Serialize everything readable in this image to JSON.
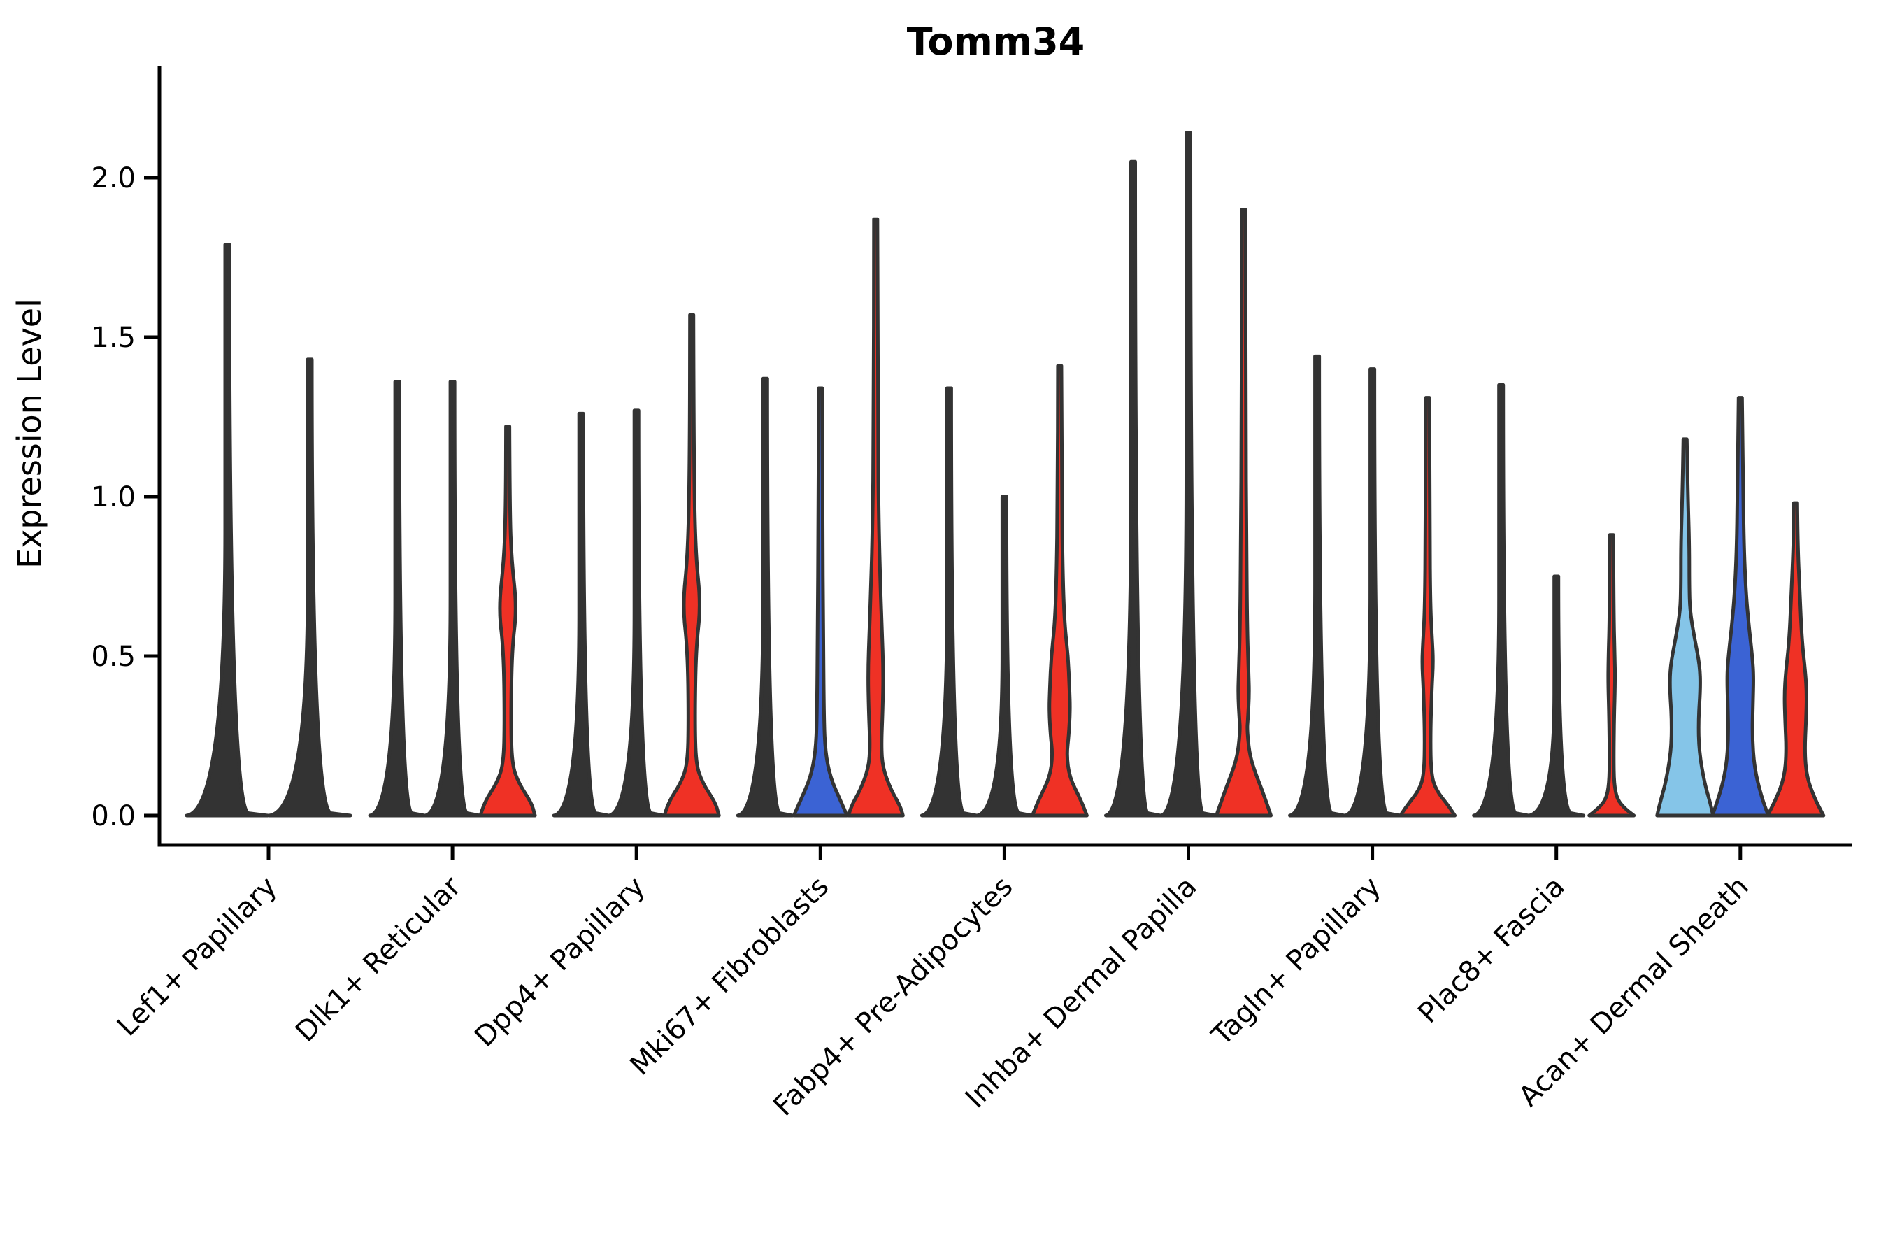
{
  "title": "Tomm34",
  "ylabel": "Expression Level",
  "colors": {
    "red": "#ef3125",
    "blue": "#3b63d4",
    "lightblue": "#85c5e8",
    "outline": "#333333",
    "axis": "#000000"
  },
  "chart_data": {
    "type": "violin",
    "title": "Tomm34",
    "xlabel": "",
    "ylabel": "Expression Level",
    "ylim": [
      0,
      2.2
    ],
    "yticks": [
      0.0,
      0.5,
      1.0,
      1.5,
      2.0
    ],
    "ytick_labels": [
      "0.0",
      "0.5",
      "1.0",
      "1.5",
      "2.0"
    ],
    "grid": false,
    "legend": false,
    "categories": [
      {
        "label": "Lef1+ Papillary",
        "violins": [
          {
            "split": "split-1",
            "color_key": "outline",
            "max_expression": 1.79,
            "profile": [
              [
                1.79,
                3
              ],
              [
                0.015,
                3
              ],
              [
                0,
                58
              ]
            ]
          },
          {
            "split": "split-3",
            "color_key": "outline",
            "max_expression": 1.43,
            "profile": [
              [
                1.43,
                3
              ],
              [
                0.015,
                3
              ],
              [
                0,
                58
              ]
            ]
          }
        ]
      },
      {
        "label": "Dlk1+ Reticular",
        "violins": [
          {
            "split": "split-1",
            "color_key": "outline",
            "max_expression": 1.36,
            "profile": [
              [
                1.36,
                3
              ],
              [
                0.015,
                3
              ],
              [
                0,
                39
              ]
            ]
          },
          {
            "split": "split-2",
            "color_key": "outline",
            "max_expression": 1.36,
            "profile": [
              [
                1.36,
                3
              ],
              [
                0.015,
                3
              ],
              [
                0,
                39
              ]
            ]
          },
          {
            "split": "split-3",
            "color_key": "red",
            "max_expression": 1.22,
            "profile": [
              [
                1.22,
                2.5
              ],
              [
                0.95,
                3
              ],
              [
                0.8,
                5.5
              ],
              [
                0.65,
                13
              ],
              [
                0.52,
                6
              ],
              [
                0.3,
                4.5
              ],
              [
                0.16,
                6
              ],
              [
                0.1,
                16
              ],
              [
                0.04,
                34
              ],
              [
                0,
                39
              ]
            ]
          }
        ]
      },
      {
        "label": "Dpp4+ Papillary",
        "violins": [
          {
            "split": "split-1",
            "color_key": "outline",
            "max_expression": 1.26,
            "profile": [
              [
                1.26,
                3
              ],
              [
                0.015,
                3
              ],
              [
                0,
                39
              ]
            ]
          },
          {
            "split": "split-2",
            "color_key": "outline",
            "max_expression": 1.27,
            "profile": [
              [
                1.27,
                3
              ],
              [
                0.015,
                3
              ],
              [
                0,
                39
              ]
            ]
          },
          {
            "split": "split-3",
            "color_key": "red",
            "max_expression": 1.57,
            "profile": [
              [
                1.57,
                2.5
              ],
              [
                1.1,
                3
              ],
              [
                0.82,
                5.5
              ],
              [
                0.66,
                13
              ],
              [
                0.52,
                6
              ],
              [
                0.3,
                4.5
              ],
              [
                0.16,
                6
              ],
              [
                0.1,
                16
              ],
              [
                0.04,
                34
              ],
              [
                0,
                39
              ]
            ]
          }
        ]
      },
      {
        "label": "Mki67+ Fibroblasts",
        "violins": [
          {
            "split": "split-1",
            "color_key": "outline",
            "max_expression": 1.37,
            "profile": [
              [
                1.37,
                3
              ],
              [
                0.015,
                3
              ],
              [
                0,
                39
              ]
            ]
          },
          {
            "split": "split-2",
            "color_key": "blue",
            "max_expression": 1.34,
            "profile": [
              [
                1.34,
                2.5
              ],
              [
                0.9,
                3
              ],
              [
                0.6,
                4
              ],
              [
                0.3,
                5
              ],
              [
                0.2,
                7
              ],
              [
                0.12,
                14
              ],
              [
                0.05,
                28
              ],
              [
                0,
                38
              ]
            ]
          },
          {
            "split": "split-3",
            "color_key": "red",
            "max_expression": 1.87,
            "profile": [
              [
                1.87,
                2.5
              ],
              [
                1.2,
                3
              ],
              [
                0.9,
                4.5
              ],
              [
                0.7,
                7
              ],
              [
                0.58,
                9
              ],
              [
                0.45,
                11
              ],
              [
                0.33,
                10
              ],
              [
                0.22,
                8
              ],
              [
                0.15,
                10
              ],
              [
                0.08,
                22
              ],
              [
                0.03,
                35
              ],
              [
                0,
                39
              ]
            ]
          }
        ]
      },
      {
        "label": "Fabp4+ Pre-Adipocytes",
        "violins": [
          {
            "split": "split-1",
            "color_key": "outline",
            "max_expression": 1.34,
            "profile": [
              [
                1.34,
                3
              ],
              [
                0.015,
                3
              ],
              [
                0,
                39
              ]
            ]
          },
          {
            "split": "split-2",
            "color_key": "outline",
            "max_expression": 1.0,
            "profile": [
              [
                1.0,
                3
              ],
              [
                0.015,
                3
              ],
              [
                0,
                39
              ]
            ]
          },
          {
            "split": "split-3",
            "color_key": "red",
            "max_expression": 1.41,
            "profile": [
              [
                1.41,
                2.5
              ],
              [
                1.0,
                3
              ],
              [
                0.75,
                4.5
              ],
              [
                0.6,
                7
              ],
              [
                0.5,
                12
              ],
              [
                0.4,
                14
              ],
              [
                0.33,
                15
              ],
              [
                0.25,
                13
              ],
              [
                0.19,
                10
              ],
              [
                0.12,
                14
              ],
              [
                0.05,
                30
              ],
              [
                0,
                39
              ]
            ]
          }
        ]
      },
      {
        "label": "Inhba+ Dermal Papilla",
        "violins": [
          {
            "split": "split-1",
            "color_key": "outline",
            "max_expression": 2.05,
            "profile": [
              [
                2.05,
                3
              ],
              [
                0.015,
                3
              ],
              [
                0,
                39
              ]
            ]
          },
          {
            "split": "split-2",
            "color_key": "outline",
            "max_expression": 2.14,
            "profile": [
              [
                2.14,
                3
              ],
              [
                0.015,
                3
              ],
              [
                0,
                39
              ]
            ]
          },
          {
            "split": "split-3",
            "color_key": "red",
            "max_expression": 1.9,
            "profile": [
              [
                1.9,
                2.5
              ],
              [
                1.2,
                3
              ],
              [
                0.9,
                4
              ],
              [
                0.6,
                5
              ],
              [
                0.45,
                7
              ],
              [
                0.38,
                8
              ],
              [
                0.3,
                6
              ],
              [
                0.27,
                5
              ],
              [
                0.2,
                8
              ],
              [
                0.15,
                14
              ],
              [
                0.07,
                28
              ],
              [
                0,
                39
              ]
            ]
          }
        ]
      },
      {
        "label": "Tagln+ Papillary",
        "violins": [
          {
            "split": "split-1",
            "color_key": "outline",
            "max_expression": 1.44,
            "profile": [
              [
                1.44,
                3
              ],
              [
                0.015,
                3
              ],
              [
                0,
                39
              ]
            ]
          },
          {
            "split": "split-2",
            "color_key": "outline",
            "max_expression": 1.4,
            "profile": [
              [
                1.4,
                3
              ],
              [
                0.015,
                3
              ],
              [
                0,
                39
              ]
            ]
          },
          {
            "split": "split-3",
            "color_key": "red",
            "max_expression": 1.31,
            "profile": [
              [
                1.31,
                2.5
              ],
              [
                0.9,
                3
              ],
              [
                0.65,
                4
              ],
              [
                0.55,
                6.5
              ],
              [
                0.48,
                8
              ],
              [
                0.4,
                6
              ],
              [
                0.25,
                4
              ],
              [
                0.13,
                5
              ],
              [
                0.08,
                12
              ],
              [
                0.03,
                30
              ],
              [
                0,
                39
              ]
            ]
          }
        ]
      },
      {
        "label": "Plac8+ Fascia",
        "violins": [
          {
            "split": "split-1",
            "color_key": "outline",
            "max_expression": 1.35,
            "profile": [
              [
                1.35,
                3
              ],
              [
                0.015,
                3
              ],
              [
                0,
                39
              ]
            ]
          },
          {
            "split": "split-2",
            "color_key": "outline",
            "max_expression": 0.75,
            "profile": [
              [
                0.75,
                3
              ],
              [
                0.015,
                3
              ],
              [
                0,
                39
              ]
            ]
          },
          {
            "split": "split-3",
            "color_key": "red",
            "max_expression": 0.88,
            "profile": [
              [
                0.88,
                2.5
              ],
              [
                0.62,
                3
              ],
              [
                0.5,
                4.5
              ],
              [
                0.42,
                5
              ],
              [
                0.3,
                3.5
              ],
              [
                0.18,
                3
              ],
              [
                0.1,
                3.5
              ],
              [
                0.05,
                8
              ],
              [
                0.02,
                20
              ],
              [
                0,
                32
              ]
            ]
          }
        ]
      },
      {
        "label": "Acan+ Dermal Sheath",
        "violins": [
          {
            "split": "split-1",
            "color_key": "lightblue",
            "max_expression": 1.18,
            "profile": [
              [
                1.18,
                2.5
              ],
              [
                1.0,
                4
              ],
              [
                0.85,
                6
              ],
              [
                0.72,
                6
              ],
              [
                0.64,
                7
              ],
              [
                0.55,
                14
              ],
              [
                0.47,
                21
              ],
              [
                0.4,
                22
              ],
              [
                0.3,
                19
              ],
              [
                0.2,
                20
              ],
              [
                0.1,
                28
              ],
              [
                0.04,
                36
              ],
              [
                0,
                40
              ]
            ]
          },
          {
            "split": "split-2",
            "color_key": "blue",
            "max_expression": 1.31,
            "profile": [
              [
                1.31,
                2.5
              ],
              [
                1.05,
                4
              ],
              [
                0.85,
                5
              ],
              [
                0.7,
                8
              ],
              [
                0.6,
                12
              ],
              [
                0.5,
                17
              ],
              [
                0.44,
                19
              ],
              [
                0.35,
                18
              ],
              [
                0.25,
                17
              ],
              [
                0.15,
                20
              ],
              [
                0.06,
                30
              ],
              [
                0,
                40
              ]
            ]
          },
          {
            "split": "split-3",
            "color_key": "red",
            "max_expression": 0.98,
            "profile": [
              [
                0.98,
                2.5
              ],
              [
                0.85,
                3
              ],
              [
                0.7,
                6
              ],
              [
                0.55,
                9
              ],
              [
                0.45,
                14
              ],
              [
                0.38,
                16
              ],
              [
                0.3,
                15
              ],
              [
                0.2,
                13
              ],
              [
                0.12,
                16
              ],
              [
                0.05,
                28
              ],
              [
                0,
                40
              ]
            ]
          }
        ]
      }
    ]
  }
}
